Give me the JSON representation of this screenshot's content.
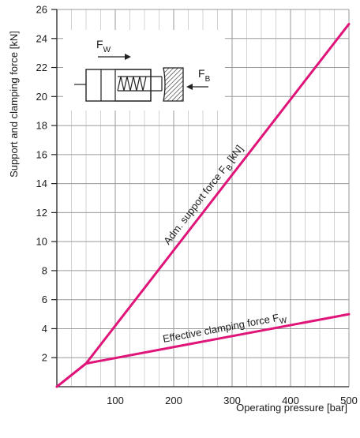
{
  "chart_data": {
    "type": "line",
    "xlabel": "Operating pressure [bar]",
    "ylabel": "Support and clamping force [kN]",
    "xlim": [
      0,
      500
    ],
    "ylim": [
      0,
      26
    ],
    "x_ticks": [
      100,
      200,
      300,
      400,
      500
    ],
    "y_ticks": [
      2,
      4,
      6,
      8,
      10,
      12,
      14,
      16,
      18,
      20,
      22,
      24,
      26
    ],
    "x_minor_step": 25,
    "y_major_step": 2,
    "grid": true,
    "series": [
      {
        "name": "Adm. support force FB [kN]",
        "name_main": "Adm. support force F",
        "name_sub": "B",
        "name_tail": " [kN]",
        "x": [
          0,
          50,
          500
        ],
        "y": [
          0,
          1.6,
          25
        ]
      },
      {
        "name": "Effective clamping force FW",
        "name_main": "Effective clamping force F",
        "name_sub": "W",
        "name_tail": "",
        "x": [
          0,
          50,
          500
        ],
        "y": [
          0,
          1.6,
          5
        ]
      }
    ],
    "line_color": "#e0157a",
    "schematic": {
      "fw_main": "F",
      "fw_sub": "W",
      "fb_main": "F",
      "fb_sub": "B"
    }
  }
}
